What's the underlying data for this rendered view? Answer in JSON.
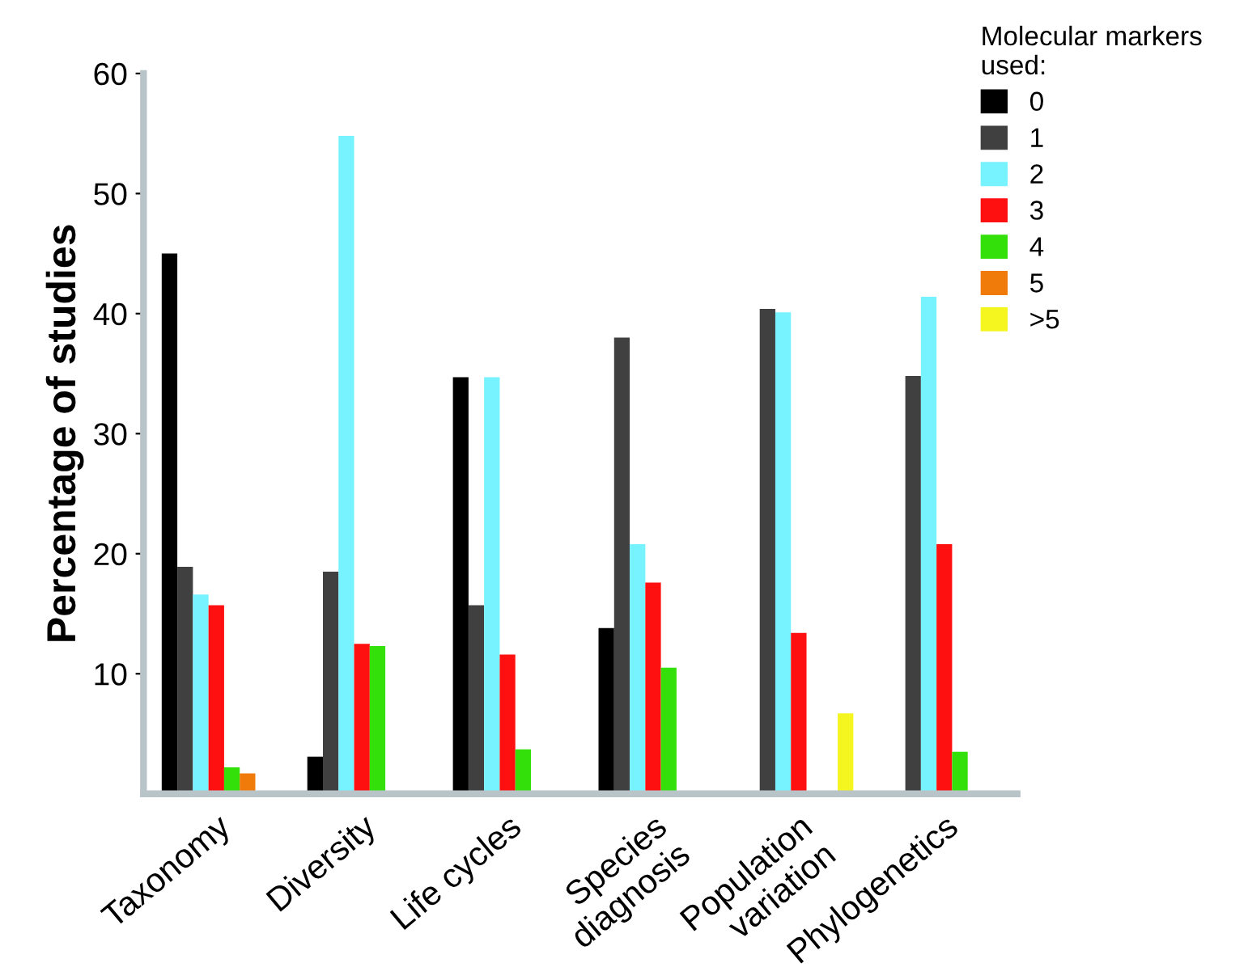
{
  "chart_data": {
    "type": "bar",
    "ylabel": "Percentage of studies",
    "legend_title": "Molecular markers\nused:",
    "categories": [
      "Taxonomy",
      "Diversity",
      "Life cycles",
      "Species\ndiagnosis",
      "Population\nvariation",
      "Phylogenetics"
    ],
    "series": [
      {
        "name": "0",
        "color": "#000000",
        "values": [
          45,
          3.1,
          34.7,
          13.8,
          null,
          null
        ]
      },
      {
        "name": "1",
        "color": "#404040",
        "values": [
          18.9,
          18.5,
          15.7,
          38.0,
          40.4,
          34.8
        ]
      },
      {
        "name": "2",
        "color": "#77f2ff",
        "values": [
          16.6,
          54.8,
          34.7,
          20.8,
          40.1,
          41.4
        ]
      },
      {
        "name": "3",
        "color": "#ff1010",
        "values": [
          15.7,
          12.5,
          11.6,
          17.6,
          13.4,
          20.8
        ]
      },
      {
        "name": "4",
        "color": "#33e00a",
        "values": [
          2.2,
          12.3,
          3.7,
          10.5,
          null,
          3.5
        ]
      },
      {
        "name": "5",
        "color": "#f07a0a",
        "values": [
          1.7,
          null,
          null,
          null,
          null,
          null
        ]
      },
      {
        "name": ">5",
        "color": "#f5f520",
        "values": [
          null,
          null,
          null,
          null,
          6.7,
          null
        ]
      }
    ],
    "ylim": [
      0,
      60
    ],
    "yticks": [
      10,
      20,
      30,
      40,
      50,
      60
    ],
    "grid": false,
    "legend": "top right"
  }
}
